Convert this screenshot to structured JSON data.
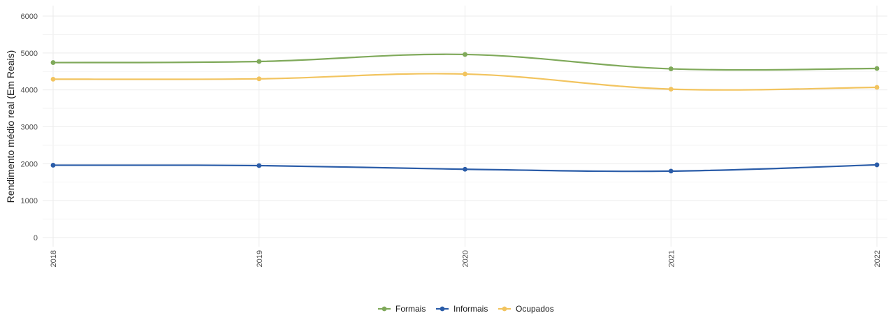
{
  "chart_data": {
    "type": "line",
    "x": [
      "2018",
      "2019",
      "2020",
      "2021",
      "2022"
    ],
    "series": [
      {
        "name": "Formais",
        "color": "#7fa95a",
        "values": [
          4740,
          4770,
          4960,
          4570,
          4580
        ]
      },
      {
        "name": "Informais",
        "color": "#2a5ca8",
        "values": [
          1960,
          1950,
          1850,
          1800,
          1970
        ]
      },
      {
        "name": "Ocupados",
        "color": "#f2c45f",
        "values": [
          4290,
          4300,
          4430,
          4020,
          4070
        ]
      }
    ],
    "ylabel": "Rendimento médio real (Em Reais)",
    "xlabel": "",
    "y_ticks": [
      "0",
      "1000",
      "2000",
      "3000",
      "4000",
      "5000",
      "6000"
    ],
    "ylim": [
      0,
      6300
    ],
    "grid": true,
    "legend_position": "bottom"
  }
}
